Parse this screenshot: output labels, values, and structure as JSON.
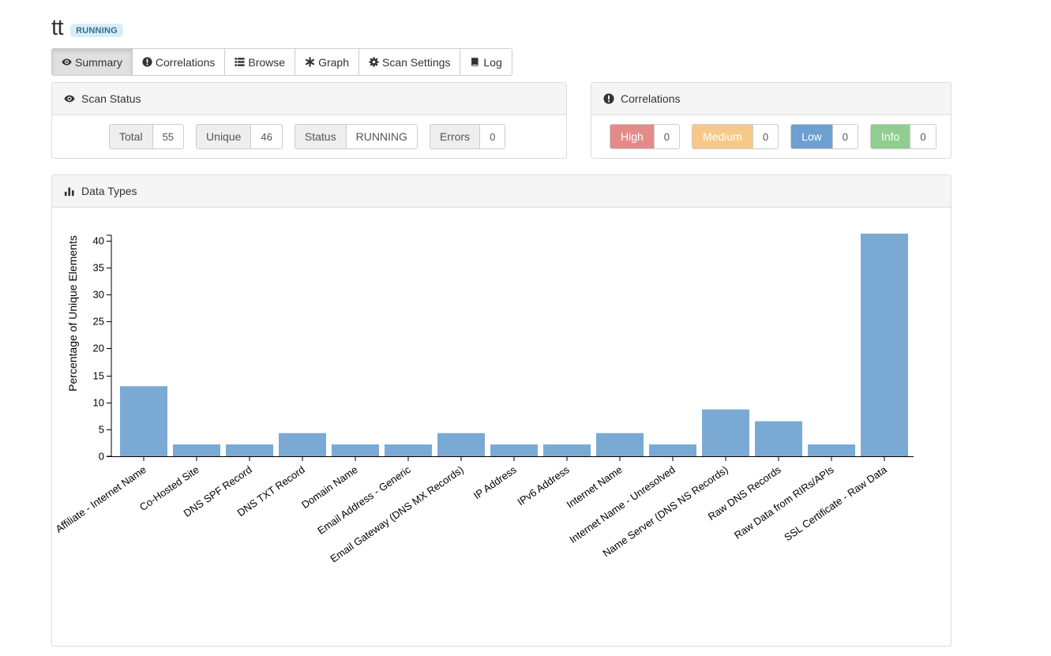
{
  "scan": {
    "title": "tt",
    "badge": "RUNNING"
  },
  "tabs": [
    {
      "label": "Summary",
      "icon": "eye-icon"
    },
    {
      "label": "Correlations",
      "icon": "exclamation-circle-icon"
    },
    {
      "label": "Browse",
      "icon": "list-icon"
    },
    {
      "label": "Graph",
      "icon": "asterisk-icon"
    },
    {
      "label": "Scan Settings",
      "icon": "gear-icon"
    },
    {
      "label": "Log",
      "icon": "book-icon"
    }
  ],
  "scan_status": {
    "title": "Scan Status",
    "total_label": "Total",
    "total_value": "55",
    "unique_label": "Unique",
    "unique_value": "46",
    "status_label": "Status",
    "status_value": "RUNNING",
    "errors_label": "Errors",
    "errors_value": "0"
  },
  "correlations": {
    "title": "Correlations",
    "high_label": "High",
    "high_value": "0",
    "medium_label": "Medium",
    "medium_value": "0",
    "low_label": "Low",
    "low_value": "0",
    "info_label": "Info",
    "info_value": "0",
    "colors": {
      "high": "#e48a8a",
      "medium": "#f6c98a",
      "low": "#6d9fd1",
      "info": "#8fce8f"
    }
  },
  "data_types": {
    "title": "Data Types"
  },
  "chart_data": {
    "type": "bar",
    "ylabel": "Percentage of Unique Elements",
    "xlabel": "",
    "ylim": [
      0,
      41
    ],
    "yticks": [
      0,
      5,
      10,
      15,
      20,
      25,
      30,
      35,
      40
    ],
    "bar_color": "#7aaad4",
    "categories": [
      "Affiliate - Internet Name",
      "Co-Hosted Site",
      "DNS SPF Record",
      "DNS TXT Record",
      "Domain Name",
      "Email Address - Generic",
      "Email Gateway (DNS MX Records)",
      "IP Address",
      "IPv6 Address",
      "Internet Name",
      "Internet Name - Unresolved",
      "Name Server (DNS NS Records)",
      "Raw DNS Records",
      "Raw Data from RIRs/APIs",
      "SSL Certificate - Raw Data"
    ],
    "values": [
      13.0,
      2.2,
      2.2,
      4.3,
      2.2,
      2.2,
      4.3,
      2.2,
      2.2,
      4.3,
      2.2,
      8.7,
      6.5,
      2.2,
      41.3
    ]
  }
}
